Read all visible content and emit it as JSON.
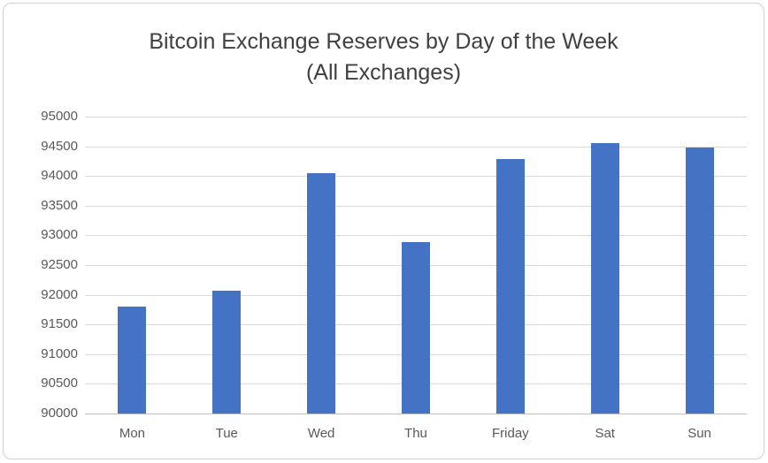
{
  "chart_data": {
    "type": "bar",
    "title": "Bitcoin Exchange Reserves by Day of the Week",
    "subtitle": "(All Exchanges)",
    "categories": [
      "Mon",
      "Tue",
      "Wed",
      "Thu",
      "Friday",
      "Sat",
      "Sun"
    ],
    "values": [
      91800,
      92070,
      94050,
      92890,
      94290,
      94560,
      94480
    ],
    "xlabel": "",
    "ylabel": "",
    "ylim": [
      90000,
      95000
    ],
    "yticks": [
      90000,
      90500,
      91000,
      91500,
      92000,
      92500,
      93000,
      93500,
      94000,
      94500,
      95000
    ],
    "grid": true,
    "legend_position": "none",
    "bar_color": "#4472C4",
    "gridline_color": "#D9D9D9",
    "axis_line_color": "#BFBFBF",
    "label_color": "#595959",
    "title_color": "#404040"
  }
}
